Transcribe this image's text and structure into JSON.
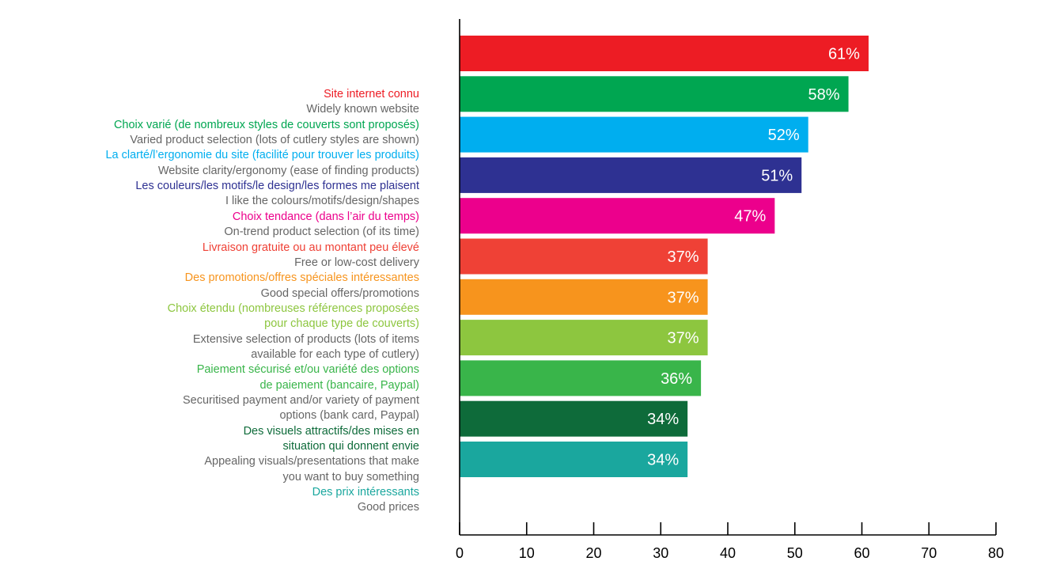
{
  "chart_data": {
    "type": "bar",
    "orientation": "horizontal",
    "xlim": [
      0,
      80
    ],
    "x_ticks": [
      0,
      10,
      20,
      30,
      40,
      50,
      60,
      70,
      80
    ],
    "tick_labels": [
      "0",
      "10",
      "20",
      "30",
      "40",
      "50",
      "60",
      "70",
      "80"
    ],
    "values": [
      61,
      58,
      52,
      51,
      47,
      37,
      37,
      37,
      36,
      34,
      34
    ],
    "value_labels": [
      "61%",
      "58%",
      "52%",
      "51%",
      "47%",
      "37%",
      "37%",
      "37%",
      "36%",
      "34%",
      "34%"
    ],
    "colors": [
      "#ED1C24",
      "#00A651",
      "#00AEEF",
      "#2E3192",
      "#EC008C",
      "#EF4136",
      "#F7941D",
      "#8DC63F",
      "#39B54A",
      "#0E6B3A",
      "#1AA79E"
    ],
    "text_gray": "#666666",
    "categories": [
      {
        "fr": [
          "Site internet connu"
        ],
        "en": [
          "Widely known website"
        ]
      },
      {
        "fr": [
          "Choix varié (de nombreux styles de couverts sont proposés)"
        ],
        "en": [
          "Varied product selection (lots of cutlery styles are shown)"
        ]
      },
      {
        "fr": [
          "La clarté/l’ergonomie du site (facilité pour trouver les produits)"
        ],
        "en": [
          "Website clarity/ergonomy (ease of finding products)"
        ]
      },
      {
        "fr": [
          "Les couleurs/les motifs/le design/les formes me plaisent"
        ],
        "en": [
          "I like the colours/motifs/design/shapes"
        ]
      },
      {
        "fr": [
          "Choix tendance (dans l’air du temps)"
        ],
        "en": [
          "On-trend product selection (of its time)"
        ]
      },
      {
        "fr": [
          "Livraison gratuite ou au montant peu élevé"
        ],
        "en": [
          "Free or low-cost delivery"
        ]
      },
      {
        "fr": [
          "Des promotions/offres spéciales intéressantes"
        ],
        "en": [
          "Good special offers/promotions"
        ]
      },
      {
        "fr": [
          "Choix étendu (nombreuses références proposées",
          "pour chaque type de couverts)"
        ],
        "en": [
          "Extensive selection of products (lots of items",
          "available for each type of cutlery)"
        ]
      },
      {
        "fr": [
          "Paiement sécurisé et/ou variété des options",
          "de paiement (bancaire, Paypal)"
        ],
        "en": [
          "Securitised payment and/or variety of payment",
          "options (bank card, Paypal)"
        ]
      },
      {
        "fr": [
          "Des visuels attractifs/des mises en",
          "situation qui donnent envie"
        ],
        "en": [
          "Appealing visuals/presentations that make",
          "you want to buy something"
        ]
      },
      {
        "fr": [
          "Des prix intéressants"
        ],
        "en": [
          "Good prices"
        ]
      }
    ]
  }
}
